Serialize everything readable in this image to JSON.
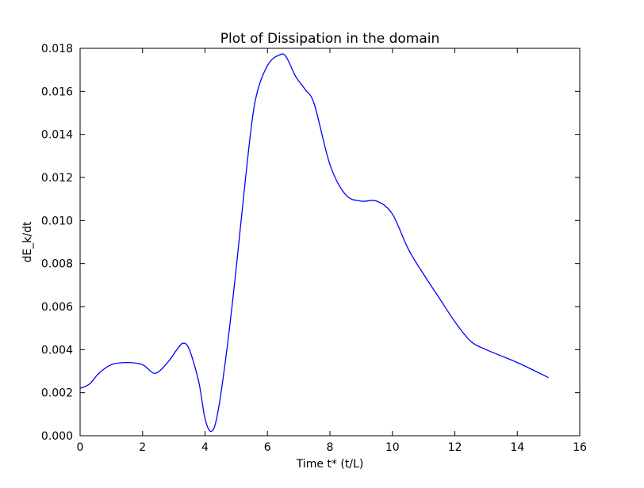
{
  "chart_data": {
    "type": "line",
    "title": "Plot of Dissipation in the domain",
    "xlabel": "Time t* (t/L)",
    "ylabel": "dE_k/dt",
    "xlim": [
      0,
      16
    ],
    "ylim": [
      0,
      0.018
    ],
    "x_ticks": [
      0,
      2,
      4,
      6,
      8,
      10,
      12,
      14,
      16
    ],
    "y_ticks": [
      0,
      0.002,
      0.004,
      0.006,
      0.008,
      0.01,
      0.012,
      0.014,
      0.016,
      0.018
    ],
    "x_tick_labels": [
      "0",
      "2",
      "4",
      "6",
      "8",
      "10",
      "12",
      "14",
      "16"
    ],
    "y_tick_labels": [
      "0.000",
      "0.002",
      "0.004",
      "0.006",
      "0.008",
      "0.010",
      "0.012",
      "0.014",
      "0.016",
      "0.018"
    ],
    "grid": false,
    "legend": "none",
    "series": [
      {
        "color": "#0000ff",
        "x": [
          0,
          0.3,
          0.6,
          1.0,
          1.5,
          2.0,
          2.4,
          2.8,
          3.1,
          3.3,
          3.5,
          3.8,
          4.0,
          4.2,
          4.4,
          4.7,
          5.0,
          5.3,
          5.6,
          6.0,
          6.4,
          6.6,
          6.9,
          7.2,
          7.5,
          8.0,
          8.5,
          9.0,
          9.5,
          10.0,
          10.5,
          11.0,
          11.5,
          12.0,
          12.5,
          13.0,
          14.0,
          15.0
        ],
        "y": [
          0.0022,
          0.0024,
          0.0029,
          0.0033,
          0.0034,
          0.0033,
          0.0029,
          0.0034,
          0.004,
          0.0043,
          0.004,
          0.0025,
          0.0008,
          0.0002,
          0.001,
          0.004,
          0.0078,
          0.012,
          0.0155,
          0.0172,
          0.0177,
          0.0176,
          0.0167,
          0.0161,
          0.0154,
          0.0126,
          0.0112,
          0.0109,
          0.0109,
          0.0103,
          0.0087,
          0.0075,
          0.0064,
          0.0053,
          0.0044,
          0.004,
          0.0034,
          0.0027
        ]
      }
    ]
  }
}
